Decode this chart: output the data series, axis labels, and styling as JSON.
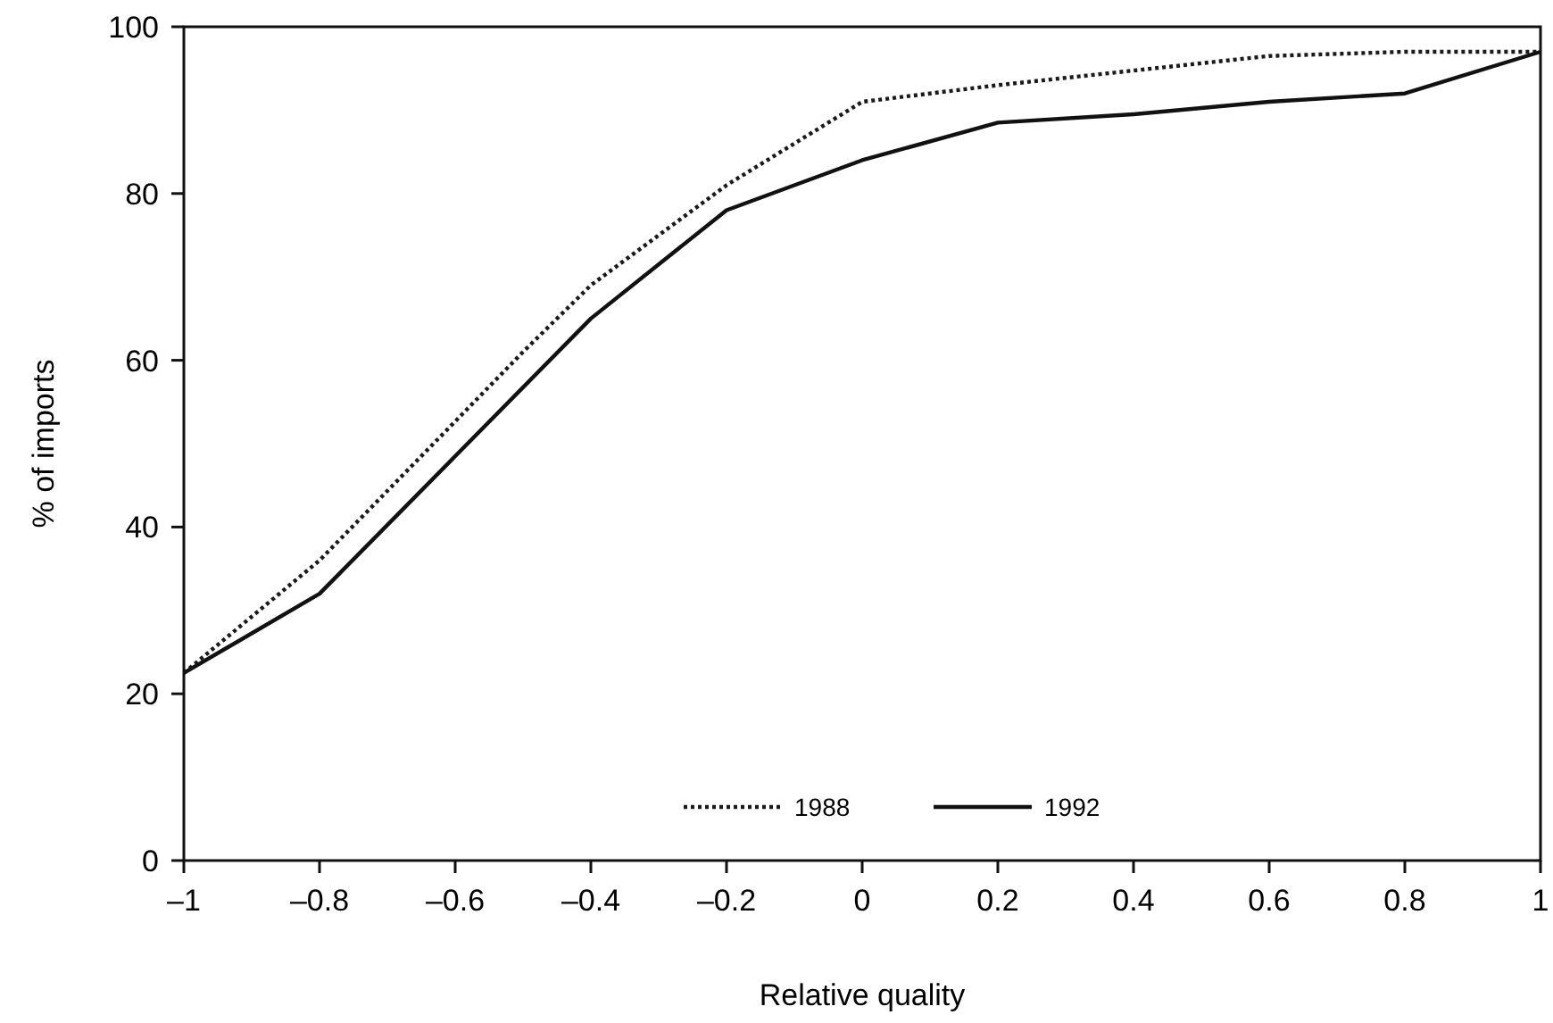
{
  "chart_data": {
    "type": "line",
    "xlabel": "Relative quality",
    "ylabel": "% of imports",
    "xlim": [
      -1,
      1
    ],
    "xticks": [
      {
        "value": -1,
        "label": "–1"
      },
      {
        "value": -0.8,
        "label": "–0.8"
      },
      {
        "value": -0.6,
        "label": "–0.6"
      },
      {
        "value": -0.4,
        "label": "–0.4"
      },
      {
        "value": -0.2,
        "label": "–0.2"
      },
      0,
      0.2,
      0.4,
      0.6,
      0.8,
      1
    ],
    "ylim": [
      0,
      100
    ],
    "yticks": [
      0,
      20,
      40,
      60,
      80,
      100
    ],
    "grid": false,
    "legend": "bottom",
    "marker": "none",
    "series": [
      {
        "name": "1988",
        "color": "#1a1a1a",
        "line_style": "dotted",
        "x": [
          -1,
          -0.8,
          -0.5,
          -0.4,
          -0.2,
          0,
          0.2,
          0.6,
          0.8,
          1
        ],
        "values": [
          22.5,
          36,
          61,
          69,
          81,
          91,
          93,
          96.5,
          97,
          97
        ]
      },
      {
        "name": "1992",
        "color": "#111111",
        "line_style": "solid",
        "x": [
          -1,
          -0.8,
          -0.6,
          -0.4,
          -0.2,
          0,
          0.2,
          0.4,
          0.6,
          0.8,
          1
        ],
        "values": [
          22.5,
          32,
          48.5,
          65,
          78,
          84,
          88.5,
          89.5,
          91,
          92,
          97
        ]
      }
    ]
  }
}
